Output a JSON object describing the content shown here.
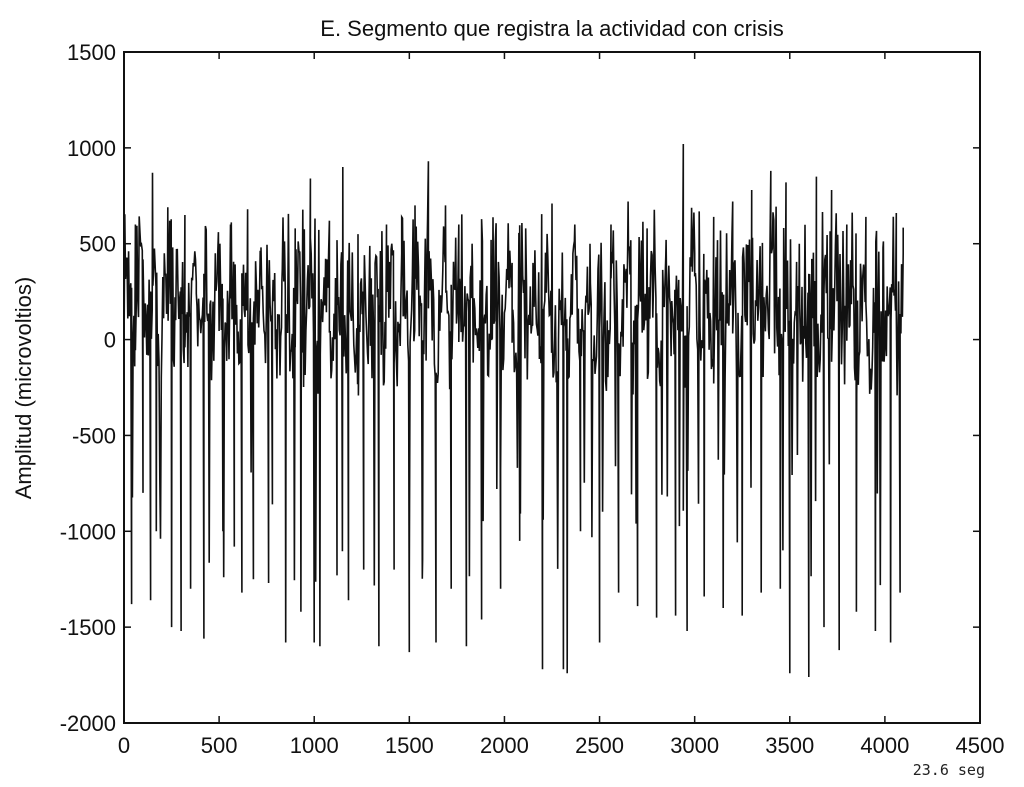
{
  "chart_data": {
    "type": "line",
    "title": "E. Segmento que registra la actividad con crisis",
    "xlabel": "",
    "ylabel": "Amplitud (microvoltios)",
    "xlim": [
      0,
      4500
    ],
    "ylim": [
      -2000,
      1500
    ],
    "xticks": [
      "0",
      "500",
      "1000",
      "1500",
      "2000",
      "2500",
      "3000",
      "3500",
      "4000",
      "4500"
    ],
    "yticks": [
      "1500",
      "1000",
      "500",
      "0",
      "-500",
      "-1000",
      "-1500",
      "-2000"
    ],
    "footnote": "23.6 seg",
    "series": [
      {
        "color": "#111111",
        "x_start": 0,
        "x_end": 4096,
        "description_points": [
          [
            0,
            300
          ],
          [
            40,
            -1380
          ],
          [
            60,
            600
          ],
          [
            100,
            -800
          ],
          [
            140,
            -1360
          ],
          [
            150,
            870
          ],
          [
            170,
            -1000
          ],
          [
            230,
            690
          ],
          [
            250,
            -1500
          ],
          [
            300,
            -1520
          ],
          [
            320,
            650
          ],
          [
            350,
            -1300
          ],
          [
            380,
            300
          ],
          [
            420,
            -1560
          ],
          [
            480,
            450
          ],
          [
            520,
            -1000
          ],
          [
            560,
            600
          ],
          [
            580,
            -1080
          ],
          [
            620,
            -1320
          ],
          [
            650,
            680
          ],
          [
            680,
            -1250
          ],
          [
            720,
            400
          ],
          [
            760,
            -1270
          ],
          [
            780,
            -860
          ],
          [
            830,
            300
          ],
          [
            850,
            -1580
          ],
          [
            900,
            580
          ],
          [
            930,
            -1420
          ],
          [
            980,
            840
          ],
          [
            1000,
            -1580
          ],
          [
            1030,
            -1600
          ],
          [
            1080,
            620
          ],
          [
            1120,
            -1230
          ],
          [
            1150,
            900
          ],
          [
            1180,
            -1360
          ],
          [
            1230,
            550
          ],
          [
            1260,
            -1200
          ],
          [
            1300,
            320
          ],
          [
            1340,
            -1600
          ],
          [
            1380,
            600
          ],
          [
            1420,
            -1200
          ],
          [
            1460,
            450
          ],
          [
            1500,
            -1630
          ],
          [
            1530,
            700
          ],
          [
            1570,
            -1150
          ],
          [
            1600,
            930
          ],
          [
            1640,
            -1580
          ],
          [
            1690,
            700
          ],
          [
            1720,
            -1300
          ],
          [
            1760,
            600
          ],
          [
            1800,
            -1600
          ],
          [
            1830,
            500
          ],
          [
            1880,
            -1460
          ],
          [
            1930,
            520
          ],
          [
            1980,
            -1300
          ],
          [
            2040,
            400
          ],
          [
            2080,
            -1050
          ],
          [
            2150,
            400
          ],
          [
            2200,
            -1720
          ],
          [
            2250,
            710
          ],
          [
            2310,
            -1720
          ],
          [
            2330,
            -1740
          ],
          [
            2370,
            600
          ],
          [
            2400,
            -1000
          ],
          [
            2450,
            500
          ],
          [
            2500,
            -1580
          ],
          [
            2560,
            600
          ],
          [
            2600,
            -1320
          ],
          [
            2650,
            720
          ],
          [
            2700,
            -1390
          ],
          [
            2750,
            580
          ],
          [
            2800,
            -1450
          ],
          [
            2850,
            520
          ],
          [
            2900,
            -1440
          ],
          [
            2940,
            1020
          ],
          [
            2960,
            -1520
          ],
          [
            3000,
            450
          ],
          [
            3050,
            -1340
          ],
          [
            3100,
            640
          ],
          [
            3150,
            -1400
          ],
          [
            3200,
            720
          ],
          [
            3250,
            -1440
          ],
          [
            3300,
            780
          ],
          [
            3350,
            -1320
          ],
          [
            3400,
            880
          ],
          [
            3450,
            -1300
          ],
          [
            3480,
            820
          ],
          [
            3500,
            -1740
          ],
          [
            3550,
            500
          ],
          [
            3600,
            -1760
          ],
          [
            3640,
            850
          ],
          [
            3680,
            -1500
          ],
          [
            3720,
            780
          ],
          [
            3760,
            -1620
          ],
          [
            3800,
            600
          ],
          [
            3850,
            -1420
          ],
          [
            3900,
            640
          ],
          [
            3950,
            -1520
          ],
          [
            3990,
            480
          ],
          [
            4030,
            -1580
          ],
          [
            4060,
            660
          ],
          [
            4080,
            -1320
          ],
          [
            4096,
            450
          ]
        ]
      }
    ]
  }
}
